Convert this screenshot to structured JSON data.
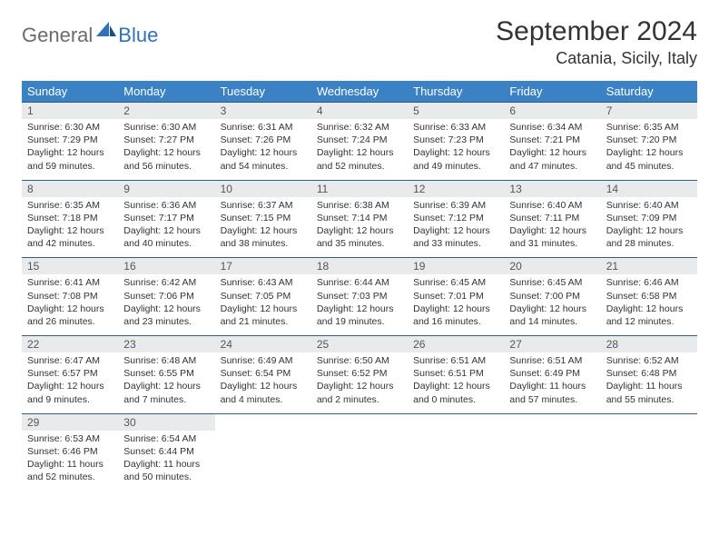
{
  "logo": {
    "general": "General",
    "blue": "Blue"
  },
  "title": "September 2024",
  "location": "Catania, Sicily, Italy",
  "colors": {
    "header_bg": "#3b82c4",
    "header_text": "#ffffff",
    "daynum_bg": "#e8eaec",
    "row_border": "#2f5d8a",
    "logo_gray": "#6b6b6b",
    "logo_blue": "#2f72b8"
  },
  "day_headers": [
    "Sunday",
    "Monday",
    "Tuesday",
    "Wednesday",
    "Thursday",
    "Friday",
    "Saturday"
  ],
  "weeks": [
    [
      {
        "n": "1",
        "sr": "Sunrise: 6:30 AM",
        "ss": "Sunset: 7:29 PM",
        "d1": "Daylight: 12 hours",
        "d2": "and 59 minutes."
      },
      {
        "n": "2",
        "sr": "Sunrise: 6:30 AM",
        "ss": "Sunset: 7:27 PM",
        "d1": "Daylight: 12 hours",
        "d2": "and 56 minutes."
      },
      {
        "n": "3",
        "sr": "Sunrise: 6:31 AM",
        "ss": "Sunset: 7:26 PM",
        "d1": "Daylight: 12 hours",
        "d2": "and 54 minutes."
      },
      {
        "n": "4",
        "sr": "Sunrise: 6:32 AM",
        "ss": "Sunset: 7:24 PM",
        "d1": "Daylight: 12 hours",
        "d2": "and 52 minutes."
      },
      {
        "n": "5",
        "sr": "Sunrise: 6:33 AM",
        "ss": "Sunset: 7:23 PM",
        "d1": "Daylight: 12 hours",
        "d2": "and 49 minutes."
      },
      {
        "n": "6",
        "sr": "Sunrise: 6:34 AM",
        "ss": "Sunset: 7:21 PM",
        "d1": "Daylight: 12 hours",
        "d2": "and 47 minutes."
      },
      {
        "n": "7",
        "sr": "Sunrise: 6:35 AM",
        "ss": "Sunset: 7:20 PM",
        "d1": "Daylight: 12 hours",
        "d2": "and 45 minutes."
      }
    ],
    [
      {
        "n": "8",
        "sr": "Sunrise: 6:35 AM",
        "ss": "Sunset: 7:18 PM",
        "d1": "Daylight: 12 hours",
        "d2": "and 42 minutes."
      },
      {
        "n": "9",
        "sr": "Sunrise: 6:36 AM",
        "ss": "Sunset: 7:17 PM",
        "d1": "Daylight: 12 hours",
        "d2": "and 40 minutes."
      },
      {
        "n": "10",
        "sr": "Sunrise: 6:37 AM",
        "ss": "Sunset: 7:15 PM",
        "d1": "Daylight: 12 hours",
        "d2": "and 38 minutes."
      },
      {
        "n": "11",
        "sr": "Sunrise: 6:38 AM",
        "ss": "Sunset: 7:14 PM",
        "d1": "Daylight: 12 hours",
        "d2": "and 35 minutes."
      },
      {
        "n": "12",
        "sr": "Sunrise: 6:39 AM",
        "ss": "Sunset: 7:12 PM",
        "d1": "Daylight: 12 hours",
        "d2": "and 33 minutes."
      },
      {
        "n": "13",
        "sr": "Sunrise: 6:40 AM",
        "ss": "Sunset: 7:11 PM",
        "d1": "Daylight: 12 hours",
        "d2": "and 31 minutes."
      },
      {
        "n": "14",
        "sr": "Sunrise: 6:40 AM",
        "ss": "Sunset: 7:09 PM",
        "d1": "Daylight: 12 hours",
        "d2": "and 28 minutes."
      }
    ],
    [
      {
        "n": "15",
        "sr": "Sunrise: 6:41 AM",
        "ss": "Sunset: 7:08 PM",
        "d1": "Daylight: 12 hours",
        "d2": "and 26 minutes."
      },
      {
        "n": "16",
        "sr": "Sunrise: 6:42 AM",
        "ss": "Sunset: 7:06 PM",
        "d1": "Daylight: 12 hours",
        "d2": "and 23 minutes."
      },
      {
        "n": "17",
        "sr": "Sunrise: 6:43 AM",
        "ss": "Sunset: 7:05 PM",
        "d1": "Daylight: 12 hours",
        "d2": "and 21 minutes."
      },
      {
        "n": "18",
        "sr": "Sunrise: 6:44 AM",
        "ss": "Sunset: 7:03 PM",
        "d1": "Daylight: 12 hours",
        "d2": "and 19 minutes."
      },
      {
        "n": "19",
        "sr": "Sunrise: 6:45 AM",
        "ss": "Sunset: 7:01 PM",
        "d1": "Daylight: 12 hours",
        "d2": "and 16 minutes."
      },
      {
        "n": "20",
        "sr": "Sunrise: 6:45 AM",
        "ss": "Sunset: 7:00 PM",
        "d1": "Daylight: 12 hours",
        "d2": "and 14 minutes."
      },
      {
        "n": "21",
        "sr": "Sunrise: 6:46 AM",
        "ss": "Sunset: 6:58 PM",
        "d1": "Daylight: 12 hours",
        "d2": "and 12 minutes."
      }
    ],
    [
      {
        "n": "22",
        "sr": "Sunrise: 6:47 AM",
        "ss": "Sunset: 6:57 PM",
        "d1": "Daylight: 12 hours",
        "d2": "and 9 minutes."
      },
      {
        "n": "23",
        "sr": "Sunrise: 6:48 AM",
        "ss": "Sunset: 6:55 PM",
        "d1": "Daylight: 12 hours",
        "d2": "and 7 minutes."
      },
      {
        "n": "24",
        "sr": "Sunrise: 6:49 AM",
        "ss": "Sunset: 6:54 PM",
        "d1": "Daylight: 12 hours",
        "d2": "and 4 minutes."
      },
      {
        "n": "25",
        "sr": "Sunrise: 6:50 AM",
        "ss": "Sunset: 6:52 PM",
        "d1": "Daylight: 12 hours",
        "d2": "and 2 minutes."
      },
      {
        "n": "26",
        "sr": "Sunrise: 6:51 AM",
        "ss": "Sunset: 6:51 PM",
        "d1": "Daylight: 12 hours",
        "d2": "and 0 minutes."
      },
      {
        "n": "27",
        "sr": "Sunrise: 6:51 AM",
        "ss": "Sunset: 6:49 PM",
        "d1": "Daylight: 11 hours",
        "d2": "and 57 minutes."
      },
      {
        "n": "28",
        "sr": "Sunrise: 6:52 AM",
        "ss": "Sunset: 6:48 PM",
        "d1": "Daylight: 11 hours",
        "d2": "and 55 minutes."
      }
    ],
    [
      {
        "n": "29",
        "sr": "Sunrise: 6:53 AM",
        "ss": "Sunset: 6:46 PM",
        "d1": "Daylight: 11 hours",
        "d2": "and 52 minutes."
      },
      {
        "n": "30",
        "sr": "Sunrise: 6:54 AM",
        "ss": "Sunset: 6:44 PM",
        "d1": "Daylight: 11 hours",
        "d2": "and 50 minutes."
      },
      {
        "empty": true
      },
      {
        "empty": true
      },
      {
        "empty": true
      },
      {
        "empty": true
      },
      {
        "empty": true
      }
    ]
  ]
}
